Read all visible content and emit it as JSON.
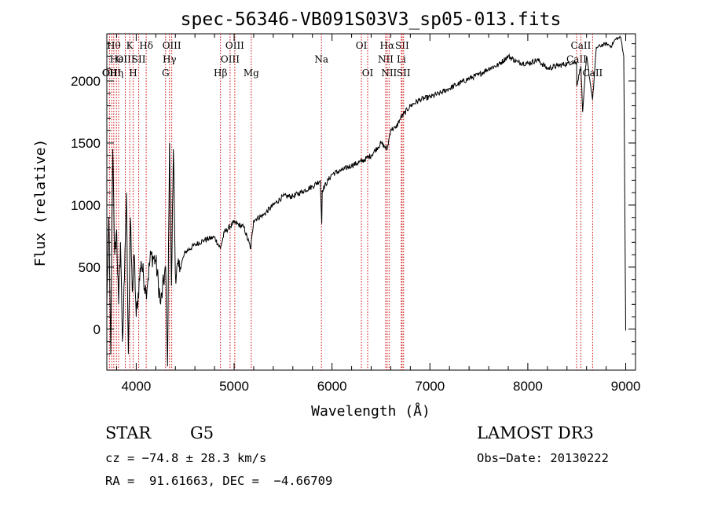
{
  "chart_data": {
    "type": "line",
    "title": "spec-56346-VB091S03V3_sp05-013.fits",
    "xlabel": "Wavelength (Å)",
    "ylabel": "Flux (relative)",
    "xlim": [
      3700,
      9100
    ],
    "ylim": [
      -330,
      2380
    ],
    "xticks": [
      4000,
      5000,
      6000,
      7000,
      8000,
      9000
    ],
    "yticks": [
      0,
      500,
      1000,
      1500,
      2000
    ],
    "grid": false,
    "series": [
      {
        "name": "flux",
        "x": [
          3700,
          3720,
          3740,
          3760,
          3780,
          3800,
          3820,
          3840,
          3860,
          3880,
          3900,
          3920,
          3940,
          3960,
          3980,
          4000,
          4050,
          4100,
          4150,
          4200,
          4250,
          4300,
          4320,
          4340,
          4360,
          4380,
          4400,
          4450,
          4500,
          4600,
          4700,
          4800,
          4860,
          4900,
          5000,
          5100,
          5170,
          5200,
          5300,
          5400,
          5500,
          5600,
          5700,
          5800,
          5880,
          5895,
          5900,
          6000,
          6100,
          6200,
          6300,
          6400,
          6500,
          6563,
          6600,
          6650,
          6700,
          6800,
          6900,
          7000,
          7100,
          7200,
          7300,
          7400,
          7500,
          7600,
          7700,
          7800,
          7900,
          8000,
          8100,
          8200,
          8300,
          8400,
          8498,
          8500,
          8542,
          8560,
          8600,
          8662,
          8700,
          8800,
          8850,
          8900,
          8950,
          8980,
          9000
        ],
        "y": [
          200,
          900,
          -200,
          1450,
          600,
          800,
          200,
          700,
          -100,
          400,
          1100,
          -200,
          900,
          300,
          600,
          100,
          550,
          300,
          600,
          550,
          200,
          500,
          -300,
          1500,
          350,
          1450,
          450,
          500,
          620,
          680,
          720,
          740,
          650,
          780,
          860,
          820,
          650,
          880,
          920,
          1000,
          1070,
          1070,
          1110,
          1150,
          1200,
          850,
          1120,
          1250,
          1280,
          1320,
          1350,
          1400,
          1500,
          1450,
          1610,
          1620,
          1700,
          1800,
          1850,
          1870,
          1900,
          1940,
          1980,
          2020,
          2050,
          2100,
          2130,
          2200,
          2150,
          2140,
          2170,
          2100,
          2120,
          2140,
          2150,
          1960,
          2120,
          1750,
          2200,
          1850,
          2270,
          2300,
          2280,
          2340,
          2350,
          2200,
          -10
        ]
      }
    ],
    "lines": [
      {
        "wl": 3727,
        "label": "OII",
        "row": 2
      },
      {
        "wl": 3750,
        "label": "OIII",
        "row": 2
      },
      {
        "wl": 3771,
        "label": "Hθ",
        "row": 0
      },
      {
        "wl": 3798,
        "label": "Hη",
        "row": 2
      },
      {
        "wl": 3820,
        "label": "HeI",
        "row": 1
      },
      {
        "wl": 3889,
        "label": "OIII",
        "row": 1
      },
      {
        "wl": 3934,
        "label": "K",
        "row": 0
      },
      {
        "wl": 3969,
        "label": "H",
        "row": 2
      },
      {
        "wl": 4026,
        "label": "SII",
        "row": 1
      },
      {
        "wl": 4102,
        "label": "Hδ",
        "row": 0
      },
      {
        "wl": 4300,
        "label": "G",
        "row": 2
      },
      {
        "wl": 4340,
        "label": "Hγ",
        "row": 1
      },
      {
        "wl": 4363,
        "label": "OIII",
        "row": 0
      },
      {
        "wl": 4861,
        "label": "Hβ",
        "row": 2
      },
      {
        "wl": 4959,
        "label": "OIII",
        "row": 1
      },
      {
        "wl": 5007,
        "label": "OIII",
        "row": 0
      },
      {
        "wl": 5175,
        "label": "Mg",
        "row": 2
      },
      {
        "wl": 5892,
        "label": "Na",
        "row": 1
      },
      {
        "wl": 6300,
        "label": "OI",
        "row": 0
      },
      {
        "wl": 6364,
        "label": "OI",
        "row": 2
      },
      {
        "wl": 6548,
        "label": "NII",
        "row": 1
      },
      {
        "wl": 6563,
        "label": "Hα",
        "row": 0
      },
      {
        "wl": 6583,
        "label": "NII",
        "row": 2
      },
      {
        "wl": 6708,
        "label": "Li",
        "row": 1
      },
      {
        "wl": 6716,
        "label": "SII",
        "row": 0
      },
      {
        "wl": 6731,
        "label": "SII",
        "row": 2
      },
      {
        "wl": 8498,
        "label": "CaII",
        "row": 1
      },
      {
        "wl": 8542,
        "label": "CaII",
        "row": 0
      },
      {
        "wl": 8662,
        "label": "CaII",
        "row": 2
      }
    ]
  },
  "info": {
    "class": "STAR",
    "subclass": "G5",
    "survey": "LAMOST DR3",
    "cz": "cz = −74.8 ± 28.3 km/s",
    "obs_date": "Obs−Date: 20130222",
    "radec": "RA =  91.61663, DEC =  −4.66709"
  }
}
